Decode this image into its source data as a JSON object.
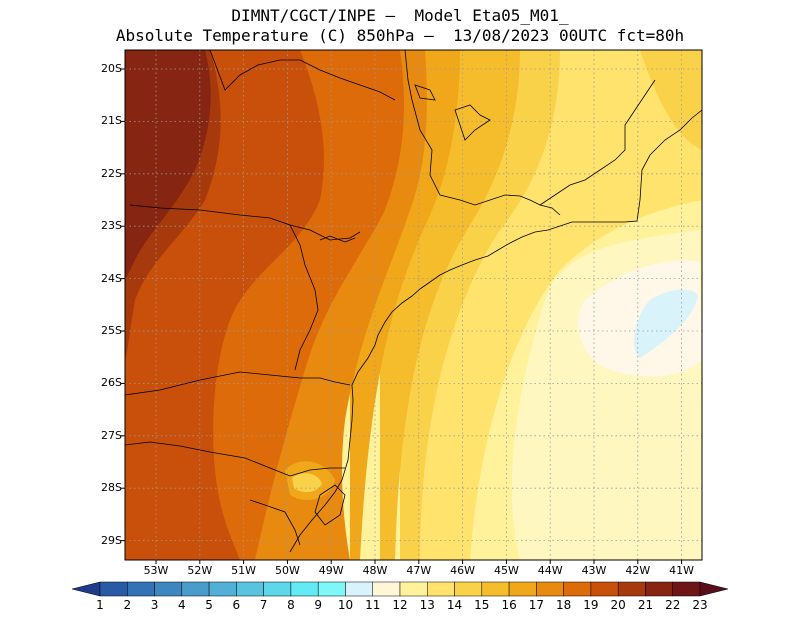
{
  "title_line1": "DIMNT/CGCT/INPE —  Model Eta05_M01_",
  "title_line2": "Absolute Temperature (C) 850hPa —  13/08/2023 00UTC fct=80h",
  "lat_labels": [
    "20S",
    "21S",
    "22S",
    "23S",
    "24S",
    "25S",
    "26S",
    "27S",
    "28S",
    "29S"
  ],
  "lon_labels": [
    "53W",
    "52W",
    "51W",
    "50W",
    "49W",
    "48W",
    "47W",
    "46W",
    "45W",
    "44W",
    "43W",
    "42W",
    "41W"
  ],
  "colorbar": {
    "labels": [
      "1",
      "2",
      "3",
      "4",
      "5",
      "6",
      "7",
      "8",
      "9",
      "10",
      "11",
      "12",
      "13",
      "14",
      "15",
      "16",
      "17",
      "18",
      "19",
      "20",
      "21",
      "22",
      "23"
    ],
    "colors": [
      "#1f3c8c",
      "#2a5aa6",
      "#3373b5",
      "#3d87c0",
      "#4a9ccb",
      "#52afd6",
      "#5ac3e0",
      "#5dd7ea",
      "#62ebf4",
      "#7df7f7",
      "#d8f4fa",
      "#fff6d8",
      "#fff29a",
      "#ffe36c",
      "#fad24a",
      "#f5bd2c",
      "#f0a71a",
      "#e88a10",
      "#dd6b0a",
      "#c9500a",
      "#a63a0c",
      "#862512",
      "#6e1518",
      "#5a0e1a"
    ]
  }
}
